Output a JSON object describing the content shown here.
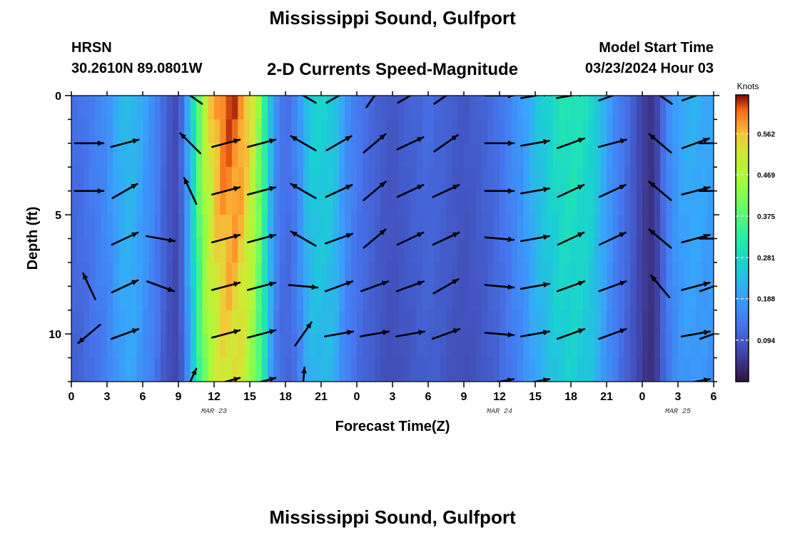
{
  "header": {
    "title": "Mississippi Sound, Gulfport",
    "station": "HRSN",
    "coords": "30.2610N  89.0801W",
    "subtitle": "2-D Currents Speed-Magnitude",
    "model_start_label": "Model Start Time",
    "model_start_value": "03/23/2024 Hour 03",
    "bottom_title": "Mississippi Sound, Gulfport"
  },
  "chart_data": {
    "type": "heatmap",
    "title": "2-D Currents Speed-Magnitude",
    "xlabel": "Forecast Time(Z)",
    "ylabel": "Depth (ft)",
    "x_tick_labels": [
      "0",
      "3",
      "6",
      "9",
      "12",
      "15",
      "18",
      "21",
      "0",
      "3",
      "6",
      "9",
      "12",
      "15",
      "18",
      "21",
      "0",
      "3",
      "6"
    ],
    "x_tick_hours": [
      0,
      3,
      6,
      9,
      12,
      15,
      18,
      21,
      24,
      27,
      30,
      33,
      36,
      39,
      42,
      45,
      48,
      51,
      54
    ],
    "date_labels": [
      {
        "text": "MAR 23",
        "hour": 12
      },
      {
        "text": "MAR 24",
        "hour": 36
      },
      {
        "text": "MAR 25",
        "hour": 51
      }
    ],
    "xlim": [
      0,
      54
    ],
    "y_tick_labels": [
      "0",
      "5",
      "10"
    ],
    "y_ticks": [
      0,
      5,
      10
    ],
    "ylim": [
      0,
      12
    ],
    "y_inverted": true,
    "colorbar": {
      "unit_label": "Knots",
      "range": [
        0,
        0.65
      ],
      "tick_values": [
        0.094,
        0.188,
        0.281,
        0.375,
        0.469,
        0.562
      ],
      "tick_labels": [
        "0.094",
        "0.188",
        "0.281",
        "0.375",
        "0.469",
        "0.562"
      ],
      "colormap": "turbo"
    },
    "speed_profile_time_hours": [
      0,
      1,
      2,
      3,
      4,
      5,
      6,
      7,
      8,
      9,
      10,
      11,
      12,
      13,
      14,
      15,
      16,
      17,
      18,
      19,
      20,
      21,
      22,
      23,
      24,
      25,
      26,
      27,
      28,
      29,
      30,
      31,
      32,
      33,
      34,
      35,
      36,
      37,
      38,
      39,
      40,
      41,
      42,
      43,
      44,
      45,
      46,
      47,
      48,
      49,
      50,
      51,
      52,
      53,
      54
    ],
    "speed_profile_knots": [
      0.12,
      0.13,
      0.15,
      0.17,
      0.22,
      0.24,
      0.2,
      0.16,
      0.1,
      0.07,
      0.24,
      0.46,
      0.58,
      0.63,
      0.62,
      0.55,
      0.4,
      0.18,
      0.12,
      0.16,
      0.26,
      0.27,
      0.26,
      0.18,
      0.14,
      0.12,
      0.1,
      0.09,
      0.1,
      0.11,
      0.12,
      0.11,
      0.1,
      0.09,
      0.1,
      0.11,
      0.13,
      0.16,
      0.19,
      0.24,
      0.27,
      0.3,
      0.31,
      0.3,
      0.27,
      0.2,
      0.15,
      0.11,
      0.06,
      0.04,
      0.15,
      0.2,
      0.22,
      0.21,
      0.2
    ],
    "arrow_depths_ft": [
      0,
      2,
      4,
      6,
      8,
      10,
      12
    ],
    "arrow_times_hours": [
      1.5,
      4.5,
      7.5,
      10,
      13,
      16,
      19.5,
      22.5,
      25.5,
      28.5,
      31.5,
      36,
      39,
      42,
      45.5,
      49.5,
      52.5,
      54
    ],
    "arrow_direction_deg": [
      [
        null,
        null,
        null,
        145,
        null,
        null,
        150,
        30,
        55,
        30,
        35,
        0,
        10,
        10,
        20,
        145,
        20,
        null
      ],
      [
        0,
        15,
        null,
        135,
        15,
        15,
        150,
        30,
        40,
        25,
        35,
        0,
        10,
        20,
        15,
        140,
        20,
        0
      ],
      [
        0,
        30,
        null,
        115,
        15,
        15,
        150,
        25,
        40,
        25,
        25,
        0,
        10,
        25,
        25,
        140,
        15,
        0
      ],
      [
        null,
        25,
        350,
        null,
        15,
        15,
        150,
        20,
        40,
        25,
        25,
        355,
        10,
        25,
        25,
        140,
        15,
        0
      ],
      [
        115,
        25,
        340,
        null,
        15,
        15,
        355,
        20,
        20,
        20,
        30,
        355,
        10,
        20,
        20,
        130,
        15,
        20
      ],
      [
        220,
        20,
        null,
        null,
        15,
        15,
        55,
        10,
        10,
        10,
        20,
        355,
        10,
        20,
        20,
        null,
        10,
        20
      ],
      [
        null,
        null,
        null,
        65,
        15,
        15,
        85,
        null,
        null,
        null,
        null,
        10,
        10,
        null,
        null,
        null,
        10,
        null
      ]
    ]
  }
}
